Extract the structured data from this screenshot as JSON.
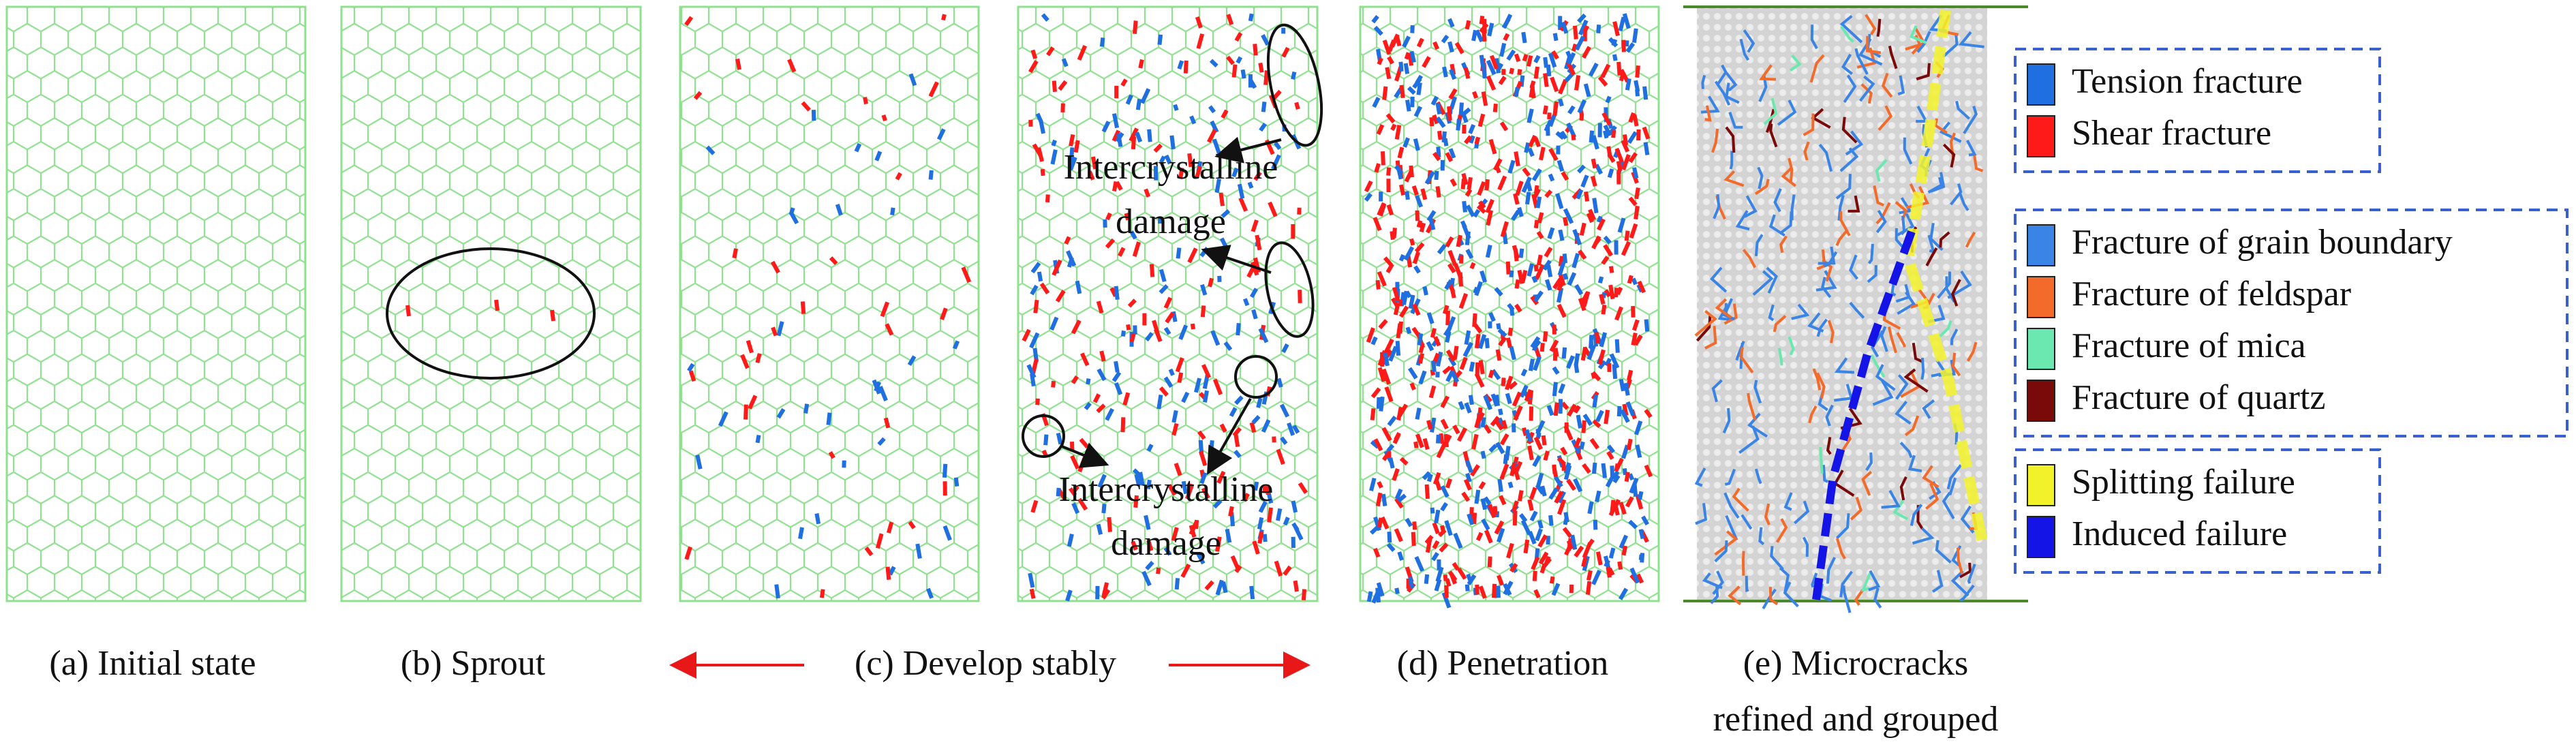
{
  "panels": [
    {
      "caption": "(a) Initial state"
    },
    {
      "caption": "(b) Sprout"
    },
    {
      "caption": "(c) Develop stably"
    },
    {
      "caption": "(d) Penetration"
    },
    {
      "caption": [
        "(e) Microcracks",
        "refined and grouped"
      ]
    }
  ],
  "annotations": [
    {
      "lines": [
        "Intercrystalline",
        "damage"
      ]
    },
    {
      "lines": [
        "Intercrystalline",
        "damage"
      ]
    }
  ],
  "legend": [
    [
      {
        "label": "Tension fracture",
        "color": "#1f6fe0"
      },
      {
        "label": "Shear fracture",
        "color": "#ff1a1a"
      }
    ],
    [
      {
        "label": "Fracture of grain boundary",
        "color": "#3a84e6"
      },
      {
        "label": "Fracture of feldspar",
        "color": "#f26b2a"
      },
      {
        "label": "Fracture of mica",
        "color": "#6be8b0"
      },
      {
        "label": "Fracture of quartz",
        "color": "#7a0a0a"
      }
    ],
    [
      {
        "label": "Splitting failure",
        "color": "#f2f22a"
      },
      {
        "label": "Induced failure",
        "color": "#1414e6"
      }
    ]
  ]
}
